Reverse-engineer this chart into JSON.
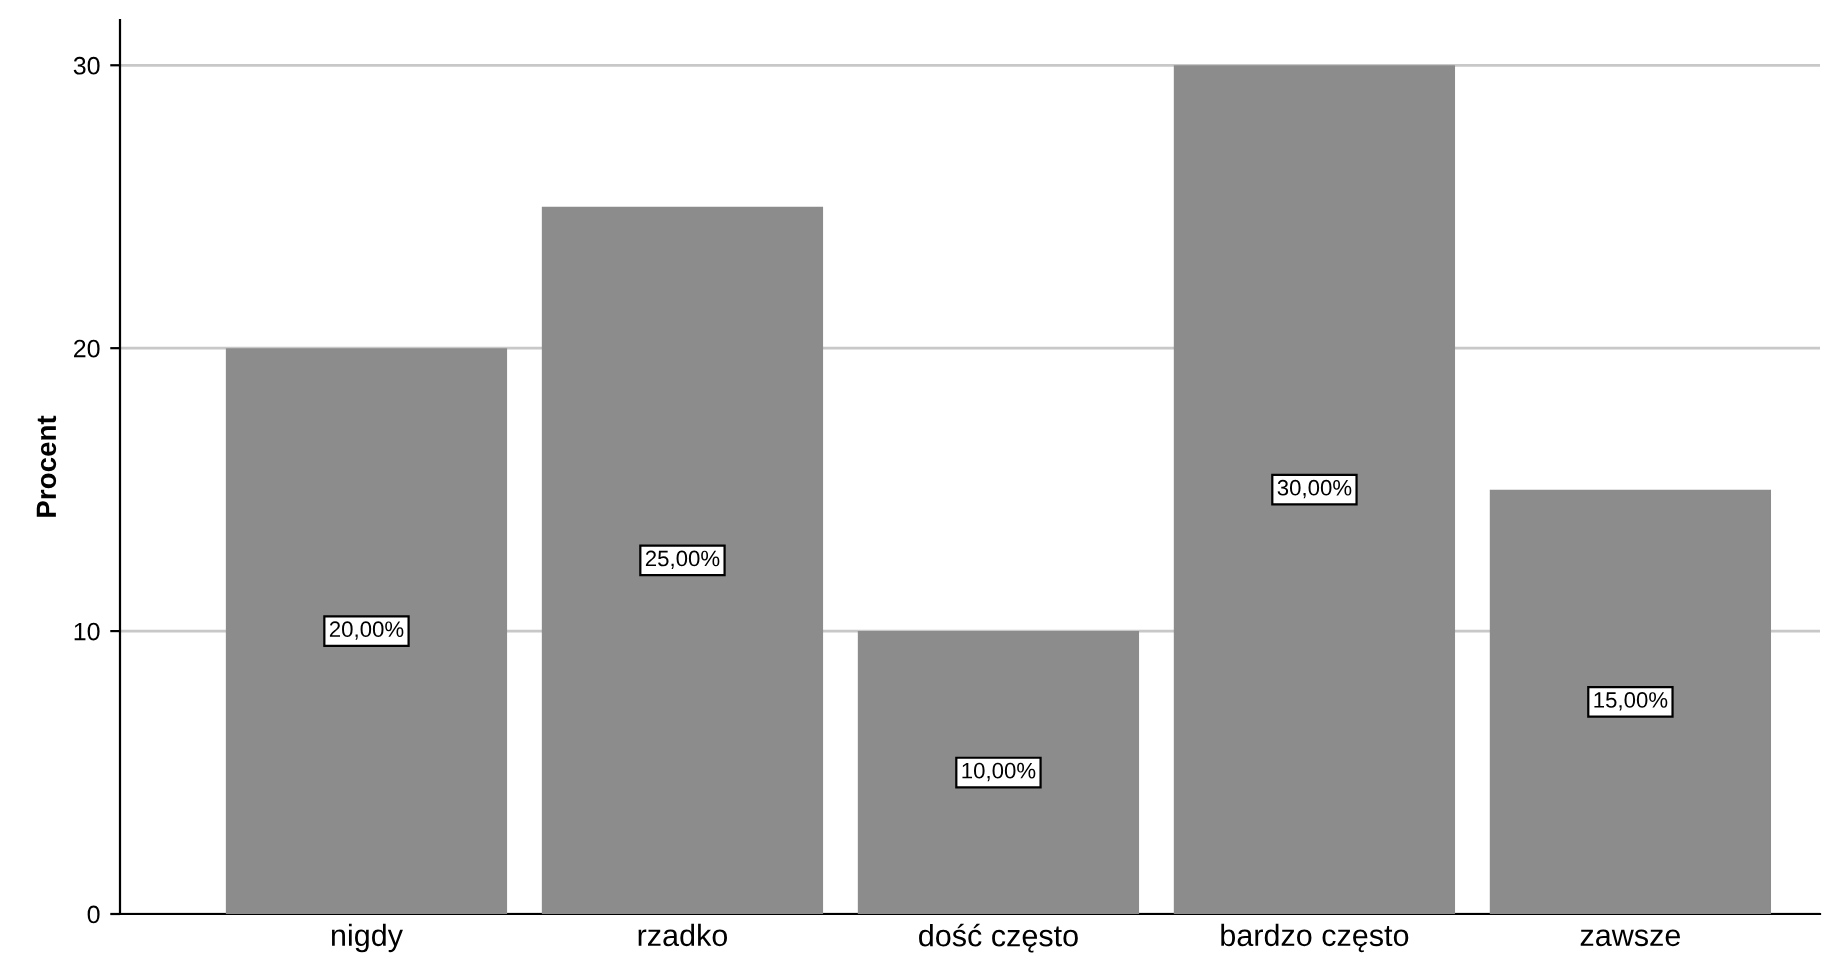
{
  "chart_data": {
    "type": "bar",
    "ylabel": "Procent",
    "categories": [
      "nigdy",
      "rzadko",
      "dość często",
      "bardzo często",
      "zawsze"
    ],
    "values": [
      20,
      25,
      10,
      30,
      15
    ],
    "value_labels": [
      "20,00%",
      "25,00%",
      "10,00%",
      "30,00%",
      "15,00%"
    ],
    "color": "#8c8c8c",
    "ylim": [
      0,
      31.6
    ],
    "yticks": [
      0,
      10,
      20,
      30
    ],
    "grid": "y"
  }
}
